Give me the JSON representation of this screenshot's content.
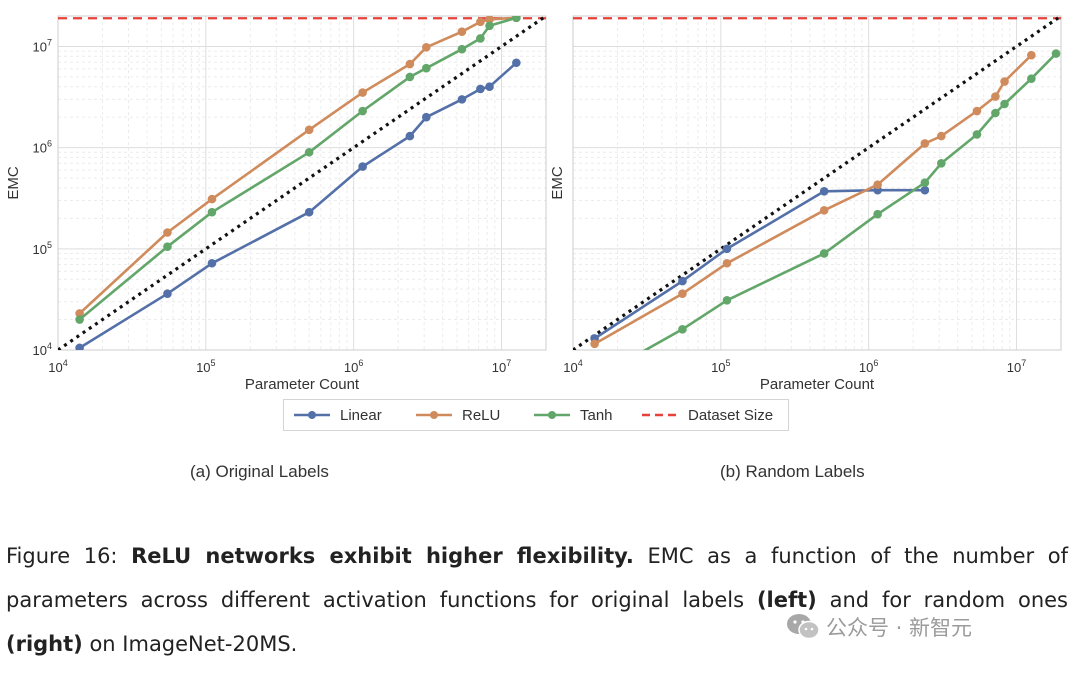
{
  "chart_data": [
    {
      "type": "line",
      "subtitle": "(a) Original Labels",
      "xlabel": "Parameter Count",
      "ylabel": "EMC",
      "xscale": "log",
      "yscale": "log",
      "xlim": [
        10000,
        20000000
      ],
      "ylim": [
        10000,
        20000000
      ],
      "grid": true,
      "xticks": [
        {
          "value": 10000,
          "base": "10",
          "exp": "4"
        },
        {
          "value": 100000,
          "base": "10",
          "exp": "5"
        },
        {
          "value": 1000000,
          "base": "10",
          "exp": "6"
        },
        {
          "value": 10000000,
          "base": "10",
          "exp": "7"
        }
      ],
      "yticks": [
        {
          "value": 10000,
          "base": "10",
          "exp": "4"
        },
        {
          "value": 100000,
          "base": "10",
          "exp": "5"
        },
        {
          "value": 1000000,
          "base": "10",
          "exp": "6"
        },
        {
          "value": 10000000,
          "base": "10",
          "exp": "7"
        }
      ],
      "reference_line": {
        "name": "y = x",
        "x": [
          10000,
          20000000
        ],
        "y": [
          10000,
          20000000
        ]
      },
      "dataset_size": 19000000,
      "series": [
        {
          "name": "Linear",
          "color": "#5470a8",
          "x": [
            14000,
            55000,
            110000,
            500000,
            1150000,
            2400000,
            3100000,
            5400000,
            7200000,
            8300000,
            12600000
          ],
          "y": [
            10500,
            36000,
            72000,
            230000,
            650000,
            1300000,
            2000000,
            3000000,
            3800000,
            4000000,
            6900000
          ]
        },
        {
          "name": "ReLU",
          "color": "#d08b5c",
          "x": [
            14000,
            55000,
            110000,
            500000,
            1150000,
            2400000,
            3100000,
            5400000,
            7200000,
            8300000,
            12600000
          ],
          "y": [
            23000,
            145000,
            310000,
            1500000,
            3500000,
            6700000,
            9800000,
            14000000,
            17500000,
            18500000,
            19200000
          ]
        },
        {
          "name": "Tanh",
          "color": "#63a66a",
          "x": [
            14000,
            55000,
            110000,
            500000,
            1150000,
            2400000,
            3100000,
            5400000,
            7200000,
            8300000,
            12600000
          ],
          "y": [
            20000,
            105000,
            230000,
            900000,
            2300000,
            5000000,
            6100000,
            9400000,
            12000000,
            16000000,
            19200000
          ]
        }
      ]
    },
    {
      "type": "line",
      "subtitle": "(b) Random Labels",
      "xlabel": "Parameter Count",
      "ylabel": "EMC",
      "xscale": "log",
      "yscale": "log",
      "xlim": [
        10000,
        20000000
      ],
      "ylim": [
        10000,
        20000000
      ],
      "grid": true,
      "xticks": [
        {
          "value": 10000,
          "base": "10",
          "exp": "4"
        },
        {
          "value": 100000,
          "base": "10",
          "exp": "5"
        },
        {
          "value": 1000000,
          "base": "10",
          "exp": "6"
        },
        {
          "value": 10000000,
          "base": "10",
          "exp": "7"
        }
      ],
      "yticks": [],
      "reference_line": {
        "name": "y = x",
        "x": [
          10000,
          20000000
        ],
        "y": [
          10000,
          20000000
        ]
      },
      "dataset_size": 19000000,
      "series": [
        {
          "name": "Linear",
          "color": "#5470a8",
          "x": [
            14000,
            55000,
            110000,
            500000,
            1150000,
            2400000
          ],
          "y": [
            13000,
            48000,
            100000,
            370000,
            380000,
            380000
          ]
        },
        {
          "name": "ReLU",
          "color": "#d08b5c",
          "x": [
            14000,
            55000,
            110000,
            500000,
            1150000,
            2400000,
            3100000,
            5400000,
            7200000,
            8300000,
            12600000
          ],
          "y": [
            11500,
            36000,
            72000,
            240000,
            430000,
            1100000,
            1300000,
            2300000,
            3200000,
            4500000,
            8200000
          ]
        },
        {
          "name": "Tanh",
          "color": "#63a66a",
          "x": [
            20000,
            55000,
            110000,
            500000,
            1150000,
            2400000,
            3100000,
            5400000,
            7200000,
            8300000,
            12600000,
            18500000
          ],
          "y": [
            7000,
            16000,
            31000,
            90000,
            220000,
            450000,
            700000,
            1350000,
            2200000,
            2700000,
            4800000,
            8500000
          ]
        }
      ]
    }
  ],
  "legend": [
    {
      "label": "Linear",
      "color": "#5470a8",
      "style": "line-marker"
    },
    {
      "label": "ReLU",
      "color": "#d08b5c",
      "style": "line-marker"
    },
    {
      "label": "Tanh",
      "color": "#63a66a",
      "style": "line-marker"
    },
    {
      "label": "Dataset Size",
      "color": "#e8413a",
      "style": "dashed"
    }
  ],
  "caption": {
    "prefix": "Figure 16: ",
    "bold": "ReLU networks exhibit higher flexibility.",
    "text1": " EMC as a function of the number of parameters across different activation functions for original labels ",
    "left": "(left)",
    "text2": " and for random ones ",
    "right": "(right)",
    "text3": " on ImageNet-20MS."
  },
  "watermark": {
    "text": "公众号 · 新智元",
    "icon": "wechat-icon"
  }
}
